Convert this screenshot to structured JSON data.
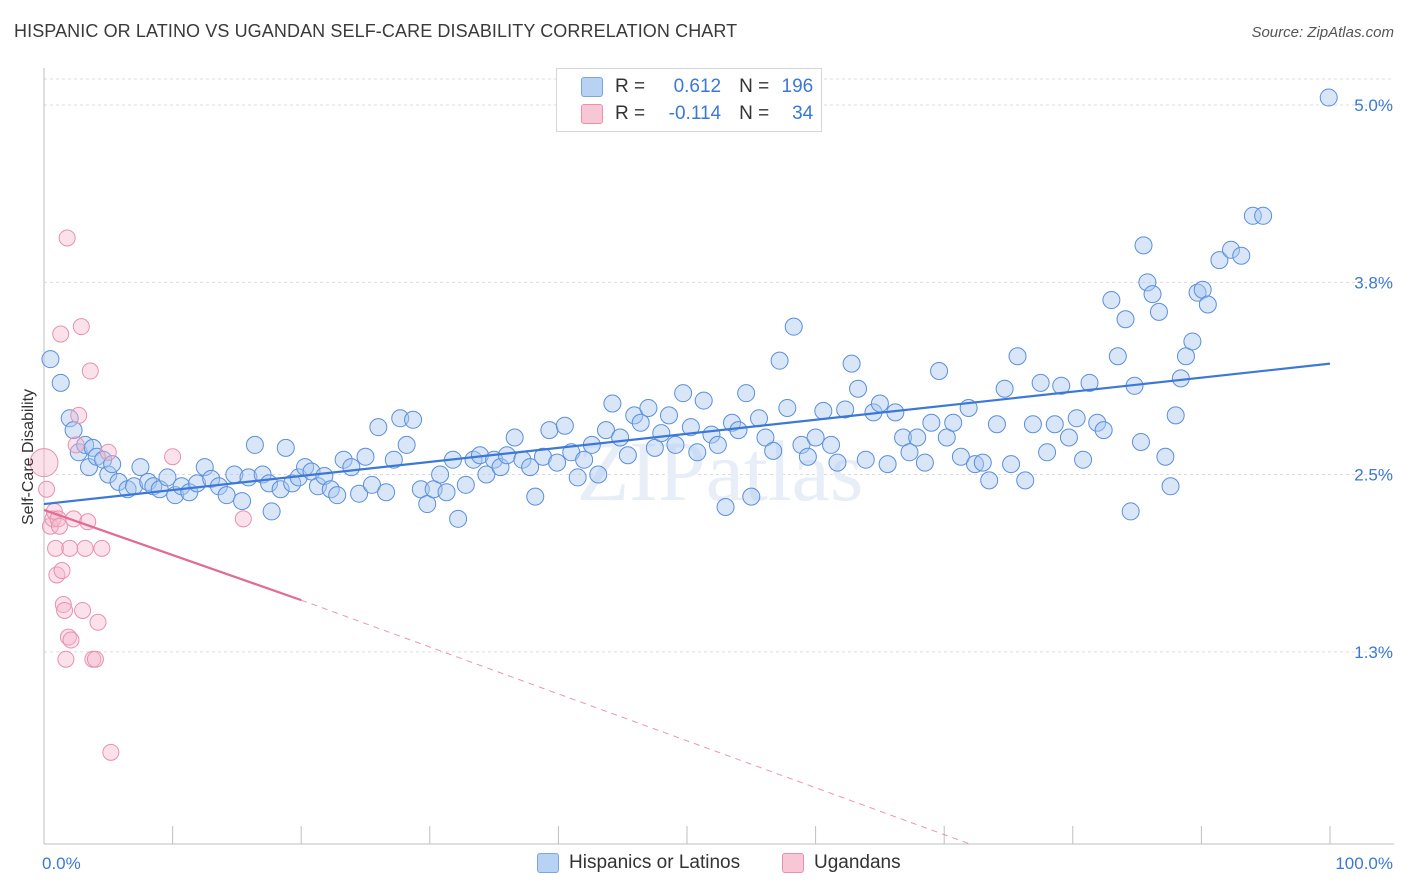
{
  "title": "HISPANIC OR LATINO VS UGANDAN SELF-CARE DISABILITY CORRELATION CHART",
  "source": "Source: ZipAtlas.com",
  "watermark": "ZIPatlas",
  "legend": {
    "row1": {
      "r_label": "R =",
      "r_value": "0.612",
      "n_label": "N =",
      "n_value": "196"
    },
    "row2": {
      "r_label": "R =",
      "r_value": "-0.114",
      "n_label": "N =",
      "n_value": "34"
    }
  },
  "bottom_legend": {
    "series1": "Hispanics or Latinos",
    "series2": "Ugandans"
  },
  "colors": {
    "blue": "#3b78d8",
    "blue_fill": "#a9c8f0",
    "pink": "#e06b94",
    "pink_fill": "#f5b7cb",
    "axis_label": "#3b78d8"
  },
  "chart_data": {
    "type": "scatter",
    "title": "HISPANIC OR LATINO VS UGANDAN SELF-CARE DISABILITY CORRELATION CHART",
    "xlabel": "",
    "ylabel": "Self-Care Disability",
    "xlim": [
      0,
      100
    ],
    "ylim": [
      0,
      5.25
    ],
    "x_tick_labels": [
      "0.0%",
      "100.0%"
    ],
    "y_ticks": [
      1.3,
      2.5,
      3.8,
      5.0
    ],
    "y_tick_labels": [
      "1.3%",
      "2.5%",
      "3.8%",
      "5.0%"
    ],
    "grid": true,
    "legend_position": "top-center",
    "series": [
      {
        "name": "Hispanics or Latinos",
        "color": "#3b78d8",
        "R": 0.612,
        "N": 196,
        "trend": {
          "x": [
            0,
            100
          ],
          "y": [
            2.3,
            3.25
          ]
        },
        "points": [
          [
            0.5,
            3.28
          ],
          [
            1.3,
            3.12
          ],
          [
            2.0,
            2.88
          ],
          [
            2.3,
            2.8
          ],
          [
            2.7,
            2.65
          ],
          [
            3.2,
            2.7
          ],
          [
            3.5,
            2.55
          ],
          [
            3.8,
            2.68
          ],
          [
            4.1,
            2.62
          ],
          [
            4.6,
            2.6
          ],
          [
            5.0,
            2.5
          ],
          [
            5.3,
            2.57
          ],
          [
            5.8,
            2.45
          ],
          [
            6.5,
            2.4
          ],
          [
            7.0,
            2.42
          ],
          [
            7.5,
            2.55
          ],
          [
            8.1,
            2.45
          ],
          [
            8.5,
            2.42
          ],
          [
            9.0,
            2.4
          ],
          [
            9.6,
            2.48
          ],
          [
            10.2,
            2.36
          ],
          [
            10.7,
            2.42
          ],
          [
            11.3,
            2.38
          ],
          [
            11.9,
            2.44
          ],
          [
            12.5,
            2.55
          ],
          [
            13.0,
            2.47
          ],
          [
            13.6,
            2.42
          ],
          [
            14.2,
            2.36
          ],
          [
            14.8,
            2.5
          ],
          [
            15.4,
            2.32
          ],
          [
            15.9,
            2.48
          ],
          [
            16.4,
            2.7
          ],
          [
            17.0,
            2.5
          ],
          [
            17.5,
            2.44
          ],
          [
            17.7,
            2.25
          ],
          [
            18.4,
            2.4
          ],
          [
            18.8,
            2.68
          ],
          [
            19.3,
            2.44
          ],
          [
            19.8,
            2.48
          ],
          [
            20.3,
            2.55
          ],
          [
            20.8,
            2.52
          ],
          [
            21.3,
            2.42
          ],
          [
            21.8,
            2.49
          ],
          [
            22.3,
            2.4
          ],
          [
            22.8,
            2.36
          ],
          [
            23.3,
            2.6
          ],
          [
            23.9,
            2.55
          ],
          [
            24.5,
            2.37
          ],
          [
            25.0,
            2.62
          ],
          [
            25.5,
            2.43
          ],
          [
            26.0,
            2.82
          ],
          [
            26.6,
            2.38
          ],
          [
            27.2,
            2.6
          ],
          [
            27.7,
            2.88
          ],
          [
            28.2,
            2.7
          ],
          [
            28.7,
            2.87
          ],
          [
            29.3,
            2.4
          ],
          [
            29.8,
            2.3
          ],
          [
            30.3,
            2.4
          ],
          [
            30.8,
            2.5
          ],
          [
            31.3,
            2.38
          ],
          [
            31.8,
            2.6
          ],
          [
            32.2,
            2.2
          ],
          [
            32.8,
            2.43
          ],
          [
            33.4,
            2.6
          ],
          [
            33.9,
            2.63
          ],
          [
            34.4,
            2.5
          ],
          [
            35.0,
            2.6
          ],
          [
            35.5,
            2.55
          ],
          [
            36.0,
            2.63
          ],
          [
            36.6,
            2.75
          ],
          [
            37.2,
            2.6
          ],
          [
            37.8,
            2.55
          ],
          [
            38.2,
            2.35
          ],
          [
            38.8,
            2.62
          ],
          [
            39.3,
            2.8
          ],
          [
            39.9,
            2.58
          ],
          [
            40.5,
            2.83
          ],
          [
            41.0,
            2.65
          ],
          [
            41.5,
            2.48
          ],
          [
            42.0,
            2.6
          ],
          [
            42.6,
            2.7
          ],
          [
            43.1,
            2.5
          ],
          [
            43.7,
            2.8
          ],
          [
            44.2,
            2.98
          ],
          [
            44.8,
            2.75
          ],
          [
            45.4,
            2.63
          ],
          [
            45.9,
            2.9
          ],
          [
            46.4,
            2.85
          ],
          [
            47.0,
            2.95
          ],
          [
            47.5,
            2.68
          ],
          [
            48.0,
            2.78
          ],
          [
            48.6,
            2.9
          ],
          [
            49.1,
            2.7
          ],
          [
            49.7,
            3.05
          ],
          [
            50.3,
            2.82
          ],
          [
            50.8,
            2.65
          ],
          [
            51.3,
            3.0
          ],
          [
            51.9,
            2.77
          ],
          [
            52.4,
            2.7
          ],
          [
            53.0,
            2.28
          ],
          [
            53.5,
            2.85
          ],
          [
            54.0,
            2.8
          ],
          [
            54.6,
            3.05
          ],
          [
            55.0,
            2.35
          ],
          [
            55.6,
            2.88
          ],
          [
            56.1,
            2.75
          ],
          [
            56.7,
            2.66
          ],
          [
            57.2,
            3.27
          ],
          [
            57.8,
            2.95
          ],
          [
            58.3,
            3.5
          ],
          [
            58.9,
            2.7
          ],
          [
            59.4,
            2.62
          ],
          [
            60.0,
            2.75
          ],
          [
            60.6,
            2.93
          ],
          [
            61.2,
            2.7
          ],
          [
            61.7,
            2.58
          ],
          [
            62.3,
            2.94
          ],
          [
            62.8,
            3.25
          ],
          [
            63.3,
            3.08
          ],
          [
            63.9,
            2.6
          ],
          [
            64.5,
            2.92
          ],
          [
            65.0,
            2.98
          ],
          [
            65.6,
            2.57
          ],
          [
            66.2,
            2.92
          ],
          [
            66.8,
            2.75
          ],
          [
            67.3,
            2.65
          ],
          [
            67.9,
            2.75
          ],
          [
            68.5,
            2.58
          ],
          [
            69.0,
            2.85
          ],
          [
            69.6,
            3.2
          ],
          [
            70.2,
            2.75
          ],
          [
            70.7,
            2.85
          ],
          [
            71.3,
            2.62
          ],
          [
            71.9,
            2.95
          ],
          [
            72.4,
            2.57
          ],
          [
            73.0,
            2.58
          ],
          [
            73.5,
            2.46
          ],
          [
            74.1,
            2.84
          ],
          [
            74.7,
            3.08
          ],
          [
            75.2,
            2.57
          ],
          [
            75.7,
            3.3
          ],
          [
            76.3,
            2.46
          ],
          [
            76.9,
            2.84
          ],
          [
            77.5,
            3.12
          ],
          [
            78.0,
            2.65
          ],
          [
            78.6,
            2.84
          ],
          [
            79.1,
            3.1
          ],
          [
            79.7,
            2.75
          ],
          [
            80.3,
            2.88
          ],
          [
            80.8,
            2.6
          ],
          [
            81.3,
            3.12
          ],
          [
            81.9,
            2.85
          ],
          [
            82.4,
            2.8
          ],
          [
            83.0,
            3.68
          ],
          [
            83.5,
            3.3
          ],
          [
            84.1,
            3.55
          ],
          [
            84.5,
            2.25
          ],
          [
            84.8,
            3.1
          ],
          [
            85.3,
            2.72
          ],
          [
            85.5,
            4.05
          ],
          [
            85.8,
            3.8
          ],
          [
            86.2,
            3.72
          ],
          [
            86.7,
            3.6
          ],
          [
            87.2,
            2.62
          ],
          [
            87.6,
            2.42
          ],
          [
            88.0,
            2.9
          ],
          [
            88.4,
            3.15
          ],
          [
            88.8,
            3.3
          ],
          [
            89.3,
            3.4
          ],
          [
            89.7,
            3.73
          ],
          [
            90.1,
            3.75
          ],
          [
            90.5,
            3.65
          ],
          [
            91.4,
            3.95
          ],
          [
            92.3,
            4.02
          ],
          [
            93.1,
            3.98
          ],
          [
            94.0,
            4.25
          ],
          [
            94.8,
            4.25
          ],
          [
            99.9,
            5.05
          ]
        ]
      },
      {
        "name": "Ugandans",
        "color": "#e06b94",
        "R": -0.114,
        "N": 34,
        "trend": {
          "x": [
            0,
            20
          ],
          "y": [
            2.26,
            1.65
          ]
        },
        "trend_dashed": {
          "x": [
            20,
            72
          ],
          "y": [
            1.65,
            0.0
          ]
        },
        "points": [
          [
            0.0,
            2.58
          ],
          [
            0.2,
            2.4
          ],
          [
            0.5,
            2.15
          ],
          [
            0.7,
            2.2
          ],
          [
            0.8,
            2.25
          ],
          [
            0.9,
            2.0
          ],
          [
            1.0,
            1.82
          ],
          [
            1.1,
            2.2
          ],
          [
            1.2,
            2.15
          ],
          [
            1.3,
            3.45
          ],
          [
            1.4,
            1.85
          ],
          [
            1.5,
            1.62
          ],
          [
            1.6,
            1.58
          ],
          [
            1.7,
            1.25
          ],
          [
            1.8,
            4.1
          ],
          [
            1.9,
            1.4
          ],
          [
            2.0,
            2.0
          ],
          [
            2.1,
            1.38
          ],
          [
            2.3,
            2.2
          ],
          [
            2.5,
            2.7
          ],
          [
            2.7,
            2.9
          ],
          [
            2.9,
            3.5
          ],
          [
            3.0,
            1.58
          ],
          [
            3.2,
            2.0
          ],
          [
            3.4,
            2.18
          ],
          [
            3.6,
            3.2
          ],
          [
            3.8,
            1.25
          ],
          [
            4.0,
            1.25
          ],
          [
            4.2,
            1.5
          ],
          [
            4.5,
            2.0
          ],
          [
            5.0,
            2.65
          ],
          [
            5.2,
            0.62
          ],
          [
            10.0,
            2.62
          ],
          [
            15.5,
            2.2
          ]
        ]
      }
    ]
  }
}
